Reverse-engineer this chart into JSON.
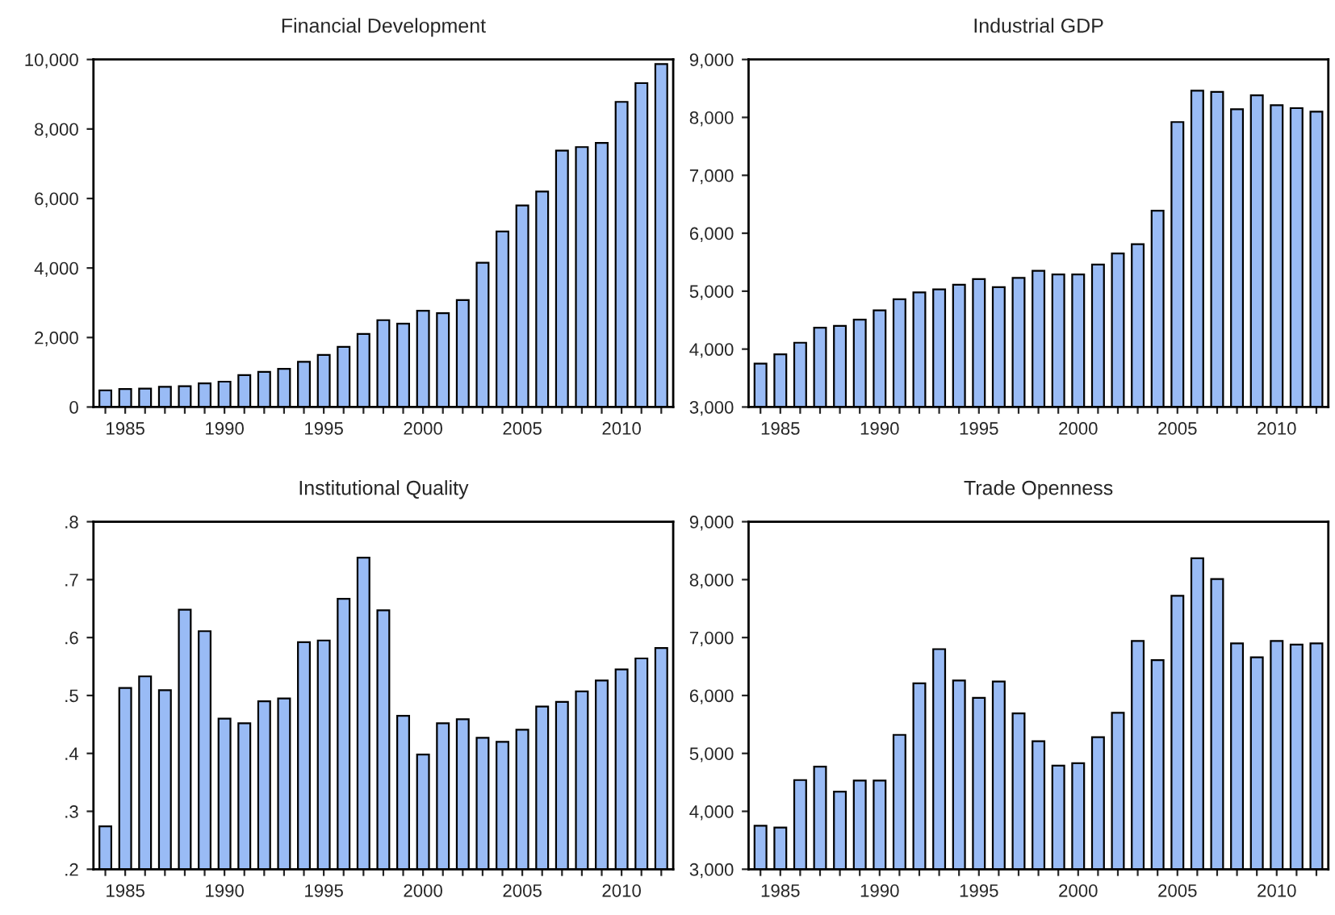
{
  "chart_data": [
    {
      "type": "bar",
      "title": "Financial Development",
      "categories": [
        null,
        "1985",
        null,
        null,
        null,
        null,
        "1990",
        null,
        null,
        null,
        null,
        "1995",
        null,
        null,
        null,
        null,
        "2000",
        null,
        null,
        null,
        null,
        "2005",
        null,
        null,
        null,
        null,
        "2010",
        null,
        null
      ],
      "color": "#99bbf5",
      "values": [
        480,
        520,
        530,
        580,
        600,
        680,
        730,
        920,
        1010,
        1100,
        1300,
        1500,
        1730,
        2100,
        2500,
        2400,
        2770,
        2700,
        3080,
        4150,
        5050,
        5800,
        6200,
        7380,
        7480,
        7600,
        8780,
        9320,
        9870
      ],
      "ylim": [
        0,
        10000
      ],
      "yticks": [
        {
          "value": 0,
          "label": "0"
        },
        {
          "value": 2000,
          "label": "2,000"
        },
        {
          "value": 4000,
          "label": "4,000"
        },
        {
          "value": 6000,
          "label": "6,000"
        },
        {
          "value": 8000,
          "label": "8,000"
        },
        {
          "value": 10000,
          "label": "10,000"
        }
      ],
      "grid": false
    },
    {
      "type": "bar",
      "title": "Industrial GDP",
      "categories": [
        null,
        "1985",
        null,
        null,
        null,
        null,
        "1990",
        null,
        null,
        null,
        null,
        "1995",
        null,
        null,
        null,
        null,
        "2000",
        null,
        null,
        null,
        null,
        "2005",
        null,
        null,
        null,
        null,
        "2010",
        null,
        null
      ],
      "color": "#99bbf5",
      "values": [
        3750,
        3910,
        4110,
        4370,
        4400,
        4510,
        4670,
        4860,
        4980,
        5030,
        5110,
        5210,
        5070,
        5230,
        5350,
        5290,
        5290,
        5460,
        5650,
        5810,
        6390,
        7920,
        8460,
        8440,
        8140,
        8380,
        8210,
        8160,
        8100
      ],
      "ylim": [
        3000,
        9000
      ],
      "yticks": [
        {
          "value": 3000,
          "label": "3,000"
        },
        {
          "value": 4000,
          "label": "4,000"
        },
        {
          "value": 5000,
          "label": "5,000"
        },
        {
          "value": 6000,
          "label": "6,000"
        },
        {
          "value": 7000,
          "label": "7,000"
        },
        {
          "value": 8000,
          "label": "8,000"
        },
        {
          "value": 9000,
          "label": "9,000"
        }
      ],
      "grid": false
    },
    {
      "type": "bar",
      "title": "Institutional Quality",
      "categories": [
        null,
        "1985",
        null,
        null,
        null,
        null,
        "1990",
        null,
        null,
        null,
        null,
        "1995",
        null,
        null,
        null,
        null,
        "2000",
        null,
        null,
        null,
        null,
        "2005",
        null,
        null,
        null,
        null,
        "2010",
        null,
        null
      ],
      "color": "#99bbf5",
      "values": [
        0.274,
        0.513,
        0.533,
        0.509,
        0.648,
        0.611,
        0.46,
        0.452,
        0.49,
        0.495,
        0.592,
        0.595,
        0.667,
        0.738,
        0.647,
        0.465,
        0.398,
        0.452,
        0.459,
        0.427,
        0.42,
        0.441,
        0.481,
        0.489,
        0.507,
        0.526,
        0.545,
        0.564,
        0.582
      ],
      "ylim": [
        0.2,
        0.8
      ],
      "yticks": [
        {
          "value": 0.2,
          "label": ".2"
        },
        {
          "value": 0.3,
          "label": ".3"
        },
        {
          "value": 0.4,
          "label": ".4"
        },
        {
          "value": 0.5,
          "label": ".5"
        },
        {
          "value": 0.6,
          "label": ".6"
        },
        {
          "value": 0.7,
          "label": ".7"
        },
        {
          "value": 0.8,
          "label": ".8"
        }
      ],
      "grid": false
    },
    {
      "type": "bar",
      "title": "Trade Openness",
      "categories": [
        null,
        "1985",
        null,
        null,
        null,
        null,
        "1990",
        null,
        null,
        null,
        null,
        "1995",
        null,
        null,
        null,
        null,
        "2000",
        null,
        null,
        null,
        null,
        "2005",
        null,
        null,
        null,
        null,
        "2010",
        null,
        null
      ],
      "color": "#99bbf5",
      "values": [
        3750,
        3720,
        4540,
        4770,
        4340,
        4530,
        4530,
        5320,
        6210,
        6800,
        6260,
        5960,
        6240,
        5690,
        5210,
        4790,
        4830,
        5280,
        5700,
        6940,
        6610,
        7720,
        8370,
        8010,
        6900,
        6660,
        6940,
        6880,
        6900
      ],
      "ylim": [
        3000,
        9000
      ],
      "yticks": [
        {
          "value": 3000,
          "label": "3,000"
        },
        {
          "value": 4000,
          "label": "4,000"
        },
        {
          "value": 5000,
          "label": "5,000"
        },
        {
          "value": 6000,
          "label": "6,000"
        },
        {
          "value": 7000,
          "label": "7,000"
        },
        {
          "value": 8000,
          "label": "8,000"
        },
        {
          "value": 9000,
          "label": "9,000"
        }
      ],
      "grid": false
    }
  ]
}
